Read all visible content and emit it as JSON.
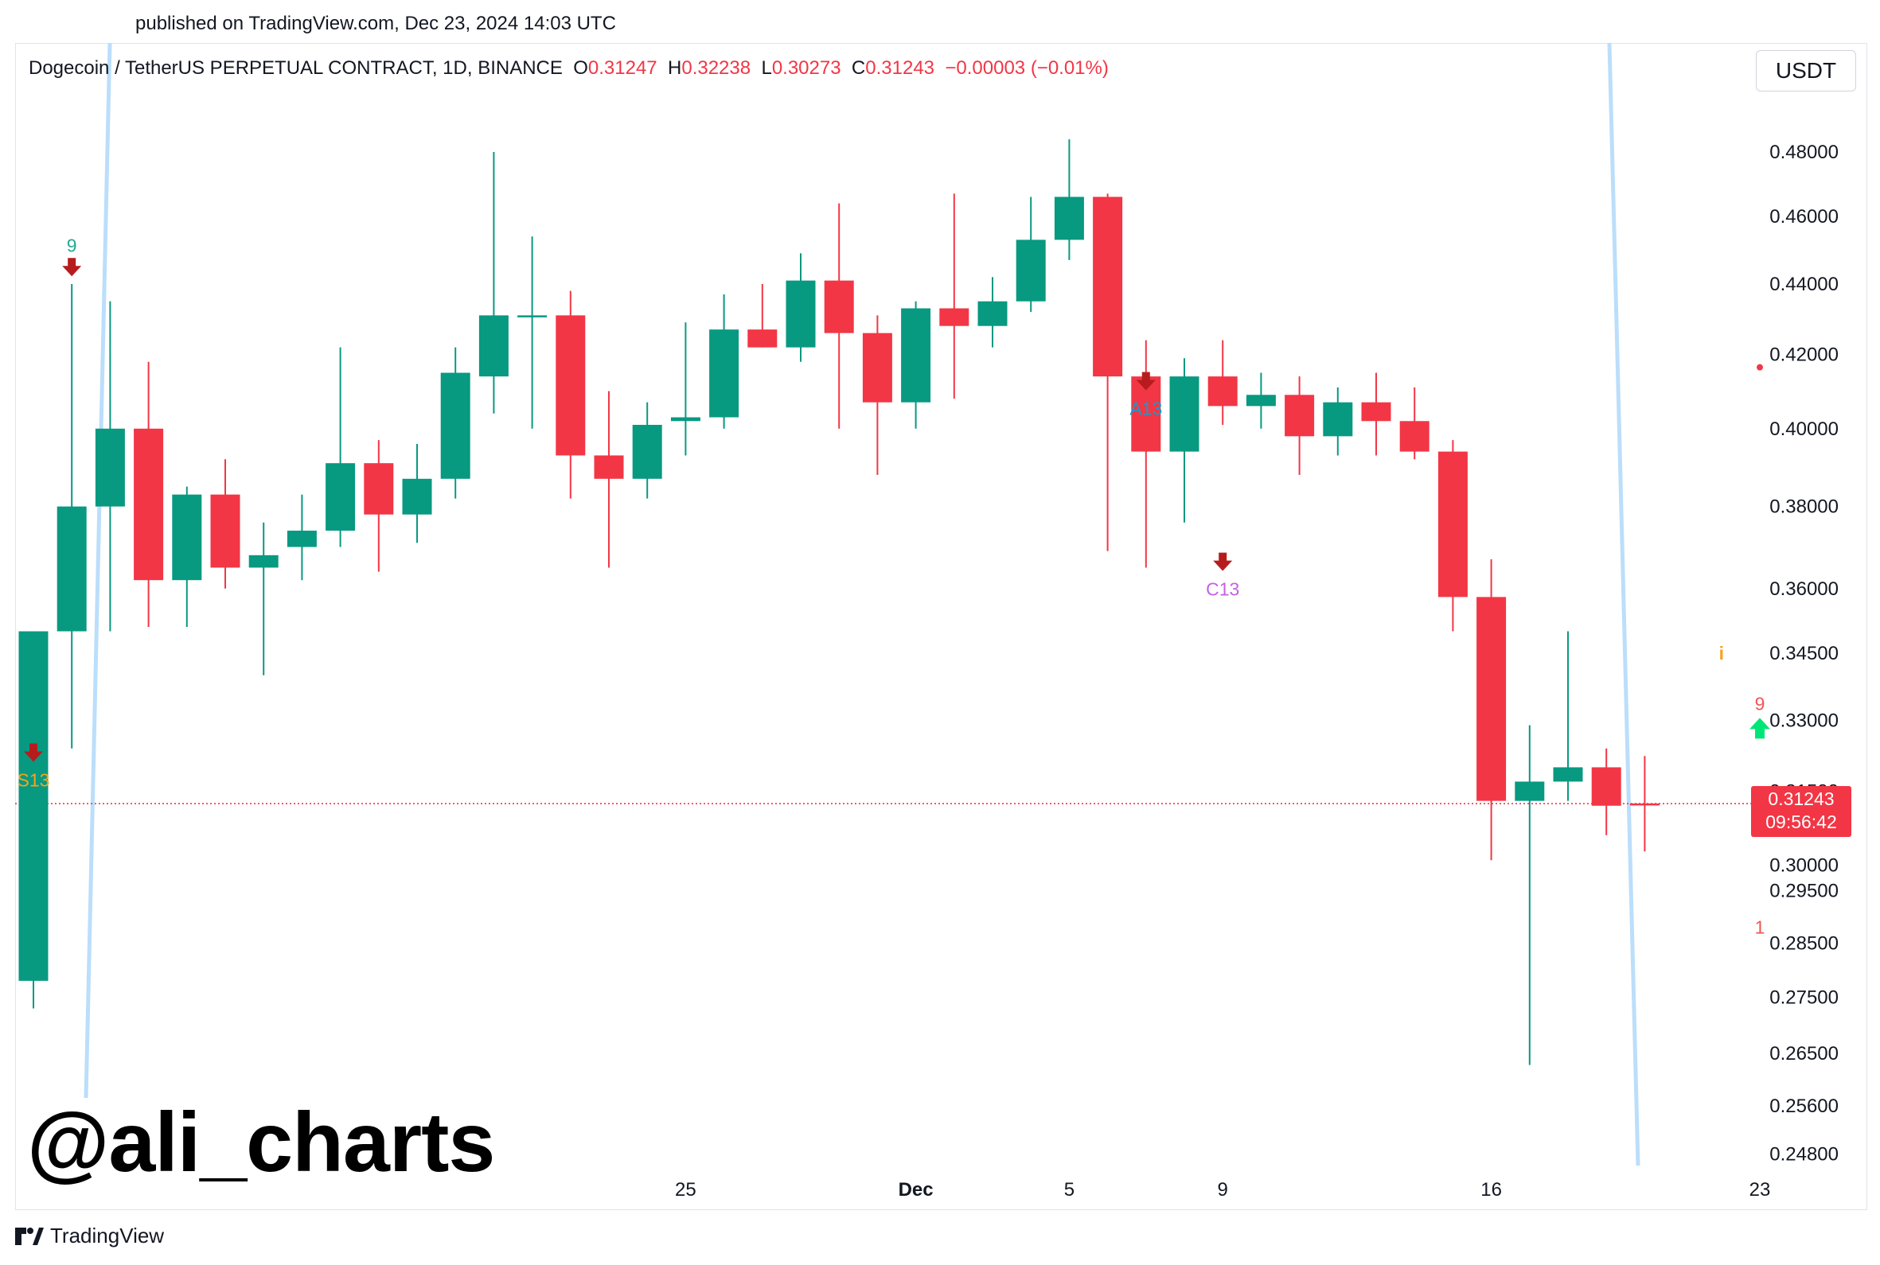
{
  "published": "published on TradingView.com, Dec 23, 2024 14:03 UTC",
  "symbol": {
    "name": "Dogecoin / TetherUS PERPETUAL CONTRACT, 1D, BINANCE",
    "o_key": "O",
    "o_val": "0.31247",
    "h_key": "H",
    "h_val": "0.32238",
    "l_key": "L",
    "l_val": "0.30273",
    "c_key": "C",
    "c_val": "0.31243",
    "change": "−0.00003 (−0.01%)"
  },
  "currency": "USDT",
  "price_badge": {
    "price": "0.31243",
    "countdown": "09:56:42"
  },
  "watermark": "@ali_charts",
  "logo_text": "TradingView",
  "colors": {
    "up": "#089981",
    "down": "#f23645",
    "axis_text": "#131722",
    "trendline": "#bbdefb",
    "signal_arrow_down": "#b71c1c",
    "signal_arrow_up": "#00e676",
    "label_green": "#22ab94",
    "label_orange": "#f7a21b",
    "label_blue": "#2196c8",
    "label_purple": "#c561e6",
    "label_red": "#f05656"
  },
  "chart_data": {
    "type": "candlestick",
    "title": "Dogecoin / TetherUS PERPETUAL CONTRACT, 1D, BINANCE",
    "y_scale": "log",
    "ylim": [
      0.2455,
      0.493
    ],
    "grid": false,
    "price_axis_labels": [
      "0.48000",
      "0.46000",
      "0.44000",
      "0.42000",
      "0.40000",
      "0.38000",
      "0.36000",
      "0.34500",
      "0.33000",
      "0.31500",
      "0.30000",
      "0.29500",
      "0.28500",
      "0.27500",
      "0.26500",
      "0.25600",
      "0.24800"
    ],
    "time_axis_labels": [
      {
        "day": 17,
        "label": "25"
      },
      {
        "day": 23,
        "label": "Dec"
      },
      {
        "day": 27,
        "label": "5"
      },
      {
        "day": 31,
        "label": "9"
      },
      {
        "day": 38,
        "label": "16"
      },
      {
        "day": 45,
        "label": "23"
      }
    ],
    "candles": [
      {
        "o": 0.278,
        "h": 0.35,
        "l": 0.273,
        "c": 0.35
      },
      {
        "o": 0.35,
        "h": 0.44,
        "l": 0.324,
        "c": 0.38
      },
      {
        "o": 0.38,
        "h": 0.435,
        "l": 0.35,
        "c": 0.4
      },
      {
        "o": 0.4,
        "h": 0.418,
        "l": 0.351,
        "c": 0.362
      },
      {
        "o": 0.362,
        "h": 0.385,
        "l": 0.351,
        "c": 0.383
      },
      {
        "o": 0.383,
        "h": 0.392,
        "l": 0.36,
        "c": 0.365
      },
      {
        "o": 0.365,
        "h": 0.376,
        "l": 0.34,
        "c": 0.368
      },
      {
        "o": 0.37,
        "h": 0.383,
        "l": 0.362,
        "c": 0.374
      },
      {
        "o": 0.374,
        "h": 0.422,
        "l": 0.37,
        "c": 0.391
      },
      {
        "o": 0.391,
        "h": 0.397,
        "l": 0.364,
        "c": 0.378
      },
      {
        "o": 0.378,
        "h": 0.396,
        "l": 0.371,
        "c": 0.387
      },
      {
        "o": 0.387,
        "h": 0.422,
        "l": 0.382,
        "c": 0.415
      },
      {
        "o": 0.414,
        "h": 0.48,
        "l": 0.404,
        "c": 0.431
      },
      {
        "o": 0.431,
        "h": 0.454,
        "l": 0.4,
        "c": 0.431
      },
      {
        "o": 0.431,
        "h": 0.438,
        "l": 0.382,
        "c": 0.393
      },
      {
        "o": 0.393,
        "h": 0.41,
        "l": 0.365,
        "c": 0.387
      },
      {
        "o": 0.387,
        "h": 0.407,
        "l": 0.382,
        "c": 0.401
      },
      {
        "o": 0.402,
        "h": 0.429,
        "l": 0.393,
        "c": 0.403
      },
      {
        "o": 0.403,
        "h": 0.437,
        "l": 0.4,
        "c": 0.427
      },
      {
        "o": 0.427,
        "h": 0.44,
        "l": 0.422,
        "c": 0.422
      },
      {
        "o": 0.422,
        "h": 0.449,
        "l": 0.418,
        "c": 0.441
      },
      {
        "o": 0.441,
        "h": 0.464,
        "l": 0.4,
        "c": 0.426
      },
      {
        "o": 0.426,
        "h": 0.431,
        "l": 0.388,
        "c": 0.407
      },
      {
        "o": 0.407,
        "h": 0.435,
        "l": 0.4,
        "c": 0.433
      },
      {
        "o": 0.433,
        "h": 0.467,
        "l": 0.408,
        "c": 0.428
      },
      {
        "o": 0.428,
        "h": 0.442,
        "l": 0.422,
        "c": 0.435
      },
      {
        "o": 0.435,
        "h": 0.466,
        "l": 0.432,
        "c": 0.453
      },
      {
        "o": 0.453,
        "h": 0.484,
        "l": 0.447,
        "c": 0.466
      },
      {
        "o": 0.466,
        "h": 0.467,
        "l": 0.369,
        "c": 0.414
      },
      {
        "o": 0.414,
        "h": 0.424,
        "l": 0.365,
        "c": 0.394
      },
      {
        "o": 0.394,
        "h": 0.419,
        "l": 0.376,
        "c": 0.414
      },
      {
        "o": 0.414,
        "h": 0.424,
        "l": 0.401,
        "c": 0.406
      },
      {
        "o": 0.406,
        "h": 0.415,
        "l": 0.4,
        "c": 0.409
      },
      {
        "o": 0.409,
        "h": 0.414,
        "l": 0.388,
        "c": 0.398
      },
      {
        "o": 0.398,
        "h": 0.411,
        "l": 0.393,
        "c": 0.407
      },
      {
        "o": 0.407,
        "h": 0.415,
        "l": 0.393,
        "c": 0.402
      },
      {
        "o": 0.402,
        "h": 0.411,
        "l": 0.392,
        "c": 0.394
      },
      {
        "o": 0.394,
        "h": 0.397,
        "l": 0.35,
        "c": 0.358
      },
      {
        "o": 0.358,
        "h": 0.367,
        "l": 0.301,
        "c": 0.313
      },
      {
        "o": 0.313,
        "h": 0.329,
        "l": 0.263,
        "c": 0.317
      },
      {
        "o": 0.317,
        "h": 0.35,
        "l": 0.313,
        "c": 0.32
      },
      {
        "o": 0.32,
        "h": 0.324,
        "l": 0.306,
        "c": 0.312
      },
      {
        "o": 0.31247,
        "h": 0.32238,
        "l": 0.30273,
        "c": 0.31243
      }
    ],
    "annotations": [
      {
        "day": 1,
        "text": "9",
        "type": "arrow-down",
        "anchor": 0.442,
        "color": "label_green",
        "placement": "above"
      },
      {
        "day": 0,
        "text": "S13",
        "type": "arrow-down",
        "anchor": 0.321,
        "color": "label_orange",
        "placement": "below"
      },
      {
        "day": 29,
        "text": "A13",
        "type": "arrow-down",
        "anchor": 0.41,
        "color": "label_blue",
        "placement": "below"
      },
      {
        "day": 31,
        "text": "C13",
        "type": "arrow-down",
        "anchor": 0.364,
        "color": "label_purple",
        "placement": "below"
      },
      {
        "day": 45,
        "text": "9",
        "type": "arrow-up",
        "anchor": 0.3285,
        "color": "label_red",
        "placement": "above"
      },
      {
        "day": 45,
        "text": "1",
        "type": "label",
        "anchor": 0.288,
        "color": "label_red",
        "placement": "at"
      },
      {
        "day": 44,
        "text": "i",
        "type": "label",
        "anchor": 0.345,
        "color": "label_orange",
        "placement": "at"
      }
    ],
    "current_price": 0.31243,
    "marker_dot": {
      "day": 45,
      "price": 0.4165
    }
  }
}
